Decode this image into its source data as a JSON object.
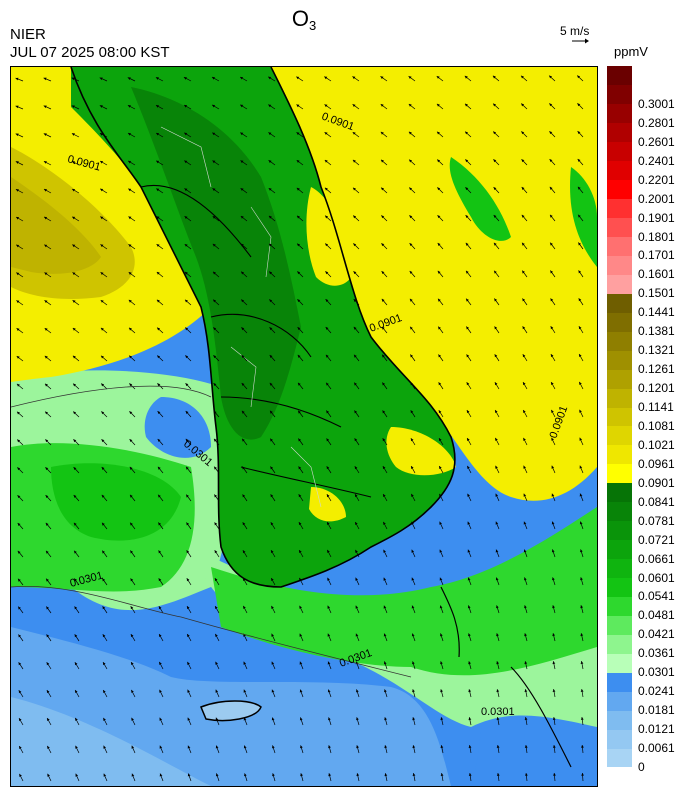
{
  "title": {
    "main": "O",
    "subscript": "3"
  },
  "agency": "NIER",
  "datetime": "JUL 07 2025 08:00 KST",
  "wind_reference": {
    "label": "5 m/s"
  },
  "units": "ppmV",
  "colors": {
    "sea_blue": "#3d8ef0",
    "light_blue": "#9ccbf0",
    "light_green": "#9cf59c",
    "green": "#17c117",
    "dark_green": "#0c8e0c",
    "yellow": "#f4ee00",
    "olive": "#b3ac00",
    "land_green": "#128c12"
  },
  "colorbar": {
    "levels": [
      {
        "label": "0",
        "color": "#a8d4f4"
      },
      {
        "label": "0.0061",
        "color": "#94c8f2"
      },
      {
        "label": "0.0121",
        "color": "#7fbcf0"
      },
      {
        "label": "0.0181",
        "color": "#62a8f0"
      },
      {
        "label": "0.0241",
        "color": "#3d8ef0"
      },
      {
        "label": "0.0301",
        "color": "#b8ffb8"
      },
      {
        "label": "0.0361",
        "color": "#8ef58e"
      },
      {
        "label": "0.0421",
        "color": "#5eea5e"
      },
      {
        "label": "0.0481",
        "color": "#2ed82e"
      },
      {
        "label": "0.0541",
        "color": "#13c413"
      },
      {
        "label": "0.0601",
        "color": "#0fb40f"
      },
      {
        "label": "0.0661",
        "color": "#0ca40c"
      },
      {
        "label": "0.0721",
        "color": "#0a940a"
      },
      {
        "label": "0.0781",
        "color": "#088408"
      },
      {
        "label": "0.0841",
        "color": "#067406"
      },
      {
        "label": "0.0901",
        "color": "#ffff00"
      },
      {
        "label": "0.0961",
        "color": "#efe700"
      },
      {
        "label": "0.1021",
        "color": "#dfd600"
      },
      {
        "label": "0.1081",
        "color": "#cfc400"
      },
      {
        "label": "0.1141",
        "color": "#bfb300"
      },
      {
        "label": "0.1201",
        "color": "#afa100"
      },
      {
        "label": "0.1261",
        "color": "#9f9000"
      },
      {
        "label": "0.1321",
        "color": "#8f7f00"
      },
      {
        "label": "0.1381",
        "color": "#7f6e00"
      },
      {
        "label": "0.1441",
        "color": "#6f5e00"
      },
      {
        "label": "0.1501",
        "color": "#ffa0a0"
      },
      {
        "label": "0.1601",
        "color": "#ff8888"
      },
      {
        "label": "0.1701",
        "color": "#ff7070"
      },
      {
        "label": "0.1801",
        "color": "#ff5050"
      },
      {
        "label": "0.1901",
        "color": "#ff3030"
      },
      {
        "label": "0.2001",
        "color": "#ff0000"
      },
      {
        "label": "0.2201",
        "color": "#e00000"
      },
      {
        "label": "0.2401",
        "color": "#c80000"
      },
      {
        "label": "0.2601",
        "color": "#b00000"
      },
      {
        "label": "0.2801",
        "color": "#980000"
      },
      {
        "label": "0.3001",
        "color": "#800000"
      },
      {
        "label": "",
        "color": "#6a0000"
      }
    ]
  },
  "contour_labels": [
    "0.0301",
    "0.0901"
  ]
}
